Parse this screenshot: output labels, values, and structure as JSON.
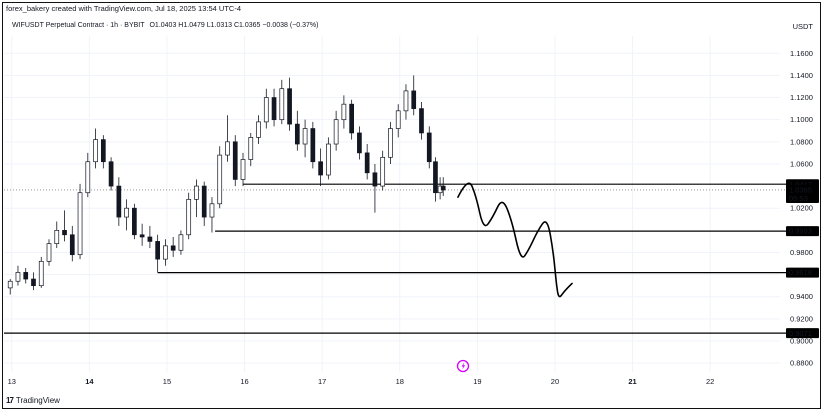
{
  "header": {
    "credit": "forex_bakery created with TradingView.com, Jul 18, 2025 13:54 UTC-4",
    "symbol": "WIFUSDT Perpetual Contract · 1h · BYBIT",
    "open": "O1.0403",
    "high": "H1.0479",
    "low": "L1.0313",
    "close": "C1.0365",
    "change": "−0.0038 (−0.37%)",
    "currency": "USDT"
  },
  "footer": {
    "brand": "TradingView",
    "logo_text": "17"
  },
  "colors": {
    "bull": "#26a69a",
    "bear": "#ef5350",
    "candle": "#131722",
    "line": "#000000",
    "grid": "#f0f3fa",
    "icon_accent": "#d500f9"
  },
  "icons": {
    "watermark": "lightning-icon"
  },
  "chart_data": {
    "type": "candlestick",
    "x_ticks": [
      {
        "label": "13",
        "day": 13,
        "bold": false
      },
      {
        "label": "14",
        "day": 14,
        "bold": true
      },
      {
        "label": "15",
        "day": 15,
        "bold": false
      },
      {
        "label": "16",
        "day": 16,
        "bold": false
      },
      {
        "label": "17",
        "day": 17,
        "bold": false
      },
      {
        "label": "18",
        "day": 18,
        "bold": false
      },
      {
        "label": "19",
        "day": 19,
        "bold": false
      },
      {
        "label": "20",
        "day": 20,
        "bold": false
      },
      {
        "label": "21",
        "day": 21,
        "bold": true
      },
      {
        "label": "22",
        "day": 22,
        "bold": false
      }
    ],
    "y_ticks": [
      "1.1600",
      "1.1400",
      "1.1200",
      "1.1000",
      "1.0800",
      "1.0600",
      "1.0200",
      "0.9800",
      "0.9600",
      "0.9400",
      "0.9200",
      "0.9000",
      "0.8800"
    ],
    "ylim": [
      0.872,
      1.172
    ],
    "xlim": [
      12.9,
      22.9
    ],
    "candles": [
      {
        "t": 12.98,
        "o": 0.948,
        "h": 0.956,
        "l": 0.942,
        "c": 0.954
      },
      {
        "t": 13.08,
        "o": 0.954,
        "h": 0.968,
        "l": 0.95,
        "c": 0.962
      },
      {
        "t": 13.18,
        "o": 0.962,
        "h": 0.966,
        "l": 0.952,
        "c": 0.956
      },
      {
        "t": 13.28,
        "o": 0.956,
        "h": 0.962,
        "l": 0.946,
        "c": 0.95
      },
      {
        "t": 13.38,
        "o": 0.95,
        "h": 0.976,
        "l": 0.948,
        "c": 0.972
      },
      {
        "t": 13.48,
        "o": 0.972,
        "h": 0.992,
        "l": 0.968,
        "c": 0.988
      },
      {
        "t": 13.58,
        "o": 0.988,
        "h": 1.008,
        "l": 0.984,
        "c": 1.0
      },
      {
        "t": 13.68,
        "o": 1.0,
        "h": 1.018,
        "l": 0.99,
        "c": 0.996
      },
      {
        "t": 13.78,
        "o": 0.996,
        "h": 1.004,
        "l": 0.972,
        "c": 0.978
      },
      {
        "t": 13.88,
        "o": 0.978,
        "h": 1.042,
        "l": 0.974,
        "c": 1.034
      },
      {
        "t": 13.98,
        "o": 1.034,
        "h": 1.07,
        "l": 1.03,
        "c": 1.062
      },
      {
        "t": 14.08,
        "o": 1.062,
        "h": 1.092,
        "l": 1.056,
        "c": 1.082
      },
      {
        "t": 14.18,
        "o": 1.082,
        "h": 1.086,
        "l": 1.056,
        "c": 1.062
      },
      {
        "t": 14.28,
        "o": 1.062,
        "h": 1.066,
        "l": 1.036,
        "c": 1.04
      },
      {
        "t": 14.38,
        "o": 1.04,
        "h": 1.048,
        "l": 1.004,
        "c": 1.012
      },
      {
        "t": 14.48,
        "o": 1.012,
        "h": 1.028,
        "l": 1.0,
        "c": 1.02
      },
      {
        "t": 14.58,
        "o": 1.02,
        "h": 1.024,
        "l": 0.992,
        "c": 0.996
      },
      {
        "t": 14.68,
        "o": 0.996,
        "h": 1.006,
        "l": 0.986,
        "c": 0.994
      },
      {
        "t": 14.78,
        "o": 0.994,
        "h": 1.004,
        "l": 0.984,
        "c": 0.99
      },
      {
        "t": 14.88,
        "o": 0.99,
        "h": 0.996,
        "l": 0.962,
        "c": 0.974
      },
      {
        "t": 14.98,
        "o": 0.974,
        "h": 0.992,
        "l": 0.968,
        "c": 0.986
      },
      {
        "t": 15.08,
        "o": 0.986,
        "h": 0.994,
        "l": 0.976,
        "c": 0.982
      },
      {
        "t": 15.18,
        "o": 0.982,
        "h": 1.0,
        "l": 0.978,
        "c": 0.996
      },
      {
        "t": 15.28,
        "o": 0.996,
        "h": 1.034,
        "l": 0.992,
        "c": 1.028
      },
      {
        "t": 15.38,
        "o": 1.028,
        "h": 1.046,
        "l": 1.012,
        "c": 1.04
      },
      {
        "t": 15.48,
        "o": 1.04,
        "h": 1.044,
        "l": 1.004,
        "c": 1.012
      },
      {
        "t": 15.58,
        "o": 1.012,
        "h": 1.03,
        "l": 0.998,
        "c": 1.024
      },
      {
        "t": 15.68,
        "o": 1.024,
        "h": 1.076,
        "l": 1.02,
        "c": 1.068
      },
      {
        "t": 15.78,
        "o": 1.068,
        "h": 1.104,
        "l": 1.062,
        "c": 1.08
      },
      {
        "t": 15.88,
        "o": 1.08,
        "h": 1.086,
        "l": 1.04,
        "c": 1.046
      },
      {
        "t": 15.98,
        "o": 1.046,
        "h": 1.07,
        "l": 1.04,
        "c": 1.064
      },
      {
        "t": 16.08,
        "o": 1.064,
        "h": 1.088,
        "l": 1.058,
        "c": 1.084
      },
      {
        "t": 16.18,
        "o": 1.084,
        "h": 1.104,
        "l": 1.078,
        "c": 1.098
      },
      {
        "t": 16.28,
        "o": 1.098,
        "h": 1.128,
        "l": 1.092,
        "c": 1.12
      },
      {
        "t": 16.38,
        "o": 1.12,
        "h": 1.128,
        "l": 1.094,
        "c": 1.1
      },
      {
        "t": 16.48,
        "o": 1.1,
        "h": 1.136,
        "l": 1.096,
        "c": 1.128
      },
      {
        "t": 16.58,
        "o": 1.128,
        "h": 1.138,
        "l": 1.09,
        "c": 1.096
      },
      {
        "t": 16.68,
        "o": 1.096,
        "h": 1.108,
        "l": 1.072,
        "c": 1.078
      },
      {
        "t": 16.78,
        "o": 1.078,
        "h": 1.1,
        "l": 1.066,
        "c": 1.092
      },
      {
        "t": 16.88,
        "o": 1.092,
        "h": 1.098,
        "l": 1.056,
        "c": 1.062
      },
      {
        "t": 16.98,
        "o": 1.062,
        "h": 1.074,
        "l": 1.04,
        "c": 1.05
      },
      {
        "t": 17.08,
        "o": 1.05,
        "h": 1.084,
        "l": 1.046,
        "c": 1.078
      },
      {
        "t": 17.18,
        "o": 1.078,
        "h": 1.108,
        "l": 1.072,
        "c": 1.1
      },
      {
        "t": 17.28,
        "o": 1.1,
        "h": 1.122,
        "l": 1.092,
        "c": 1.114
      },
      {
        "t": 17.38,
        "o": 1.114,
        "h": 1.118,
        "l": 1.082,
        "c": 1.088
      },
      {
        "t": 17.48,
        "o": 1.088,
        "h": 1.094,
        "l": 1.064,
        "c": 1.07
      },
      {
        "t": 17.58,
        "o": 1.07,
        "h": 1.078,
        "l": 1.046,
        "c": 1.052
      },
      {
        "t": 17.68,
        "o": 1.052,
        "h": 1.06,
        "l": 1.016,
        "c": 1.04
      },
      {
        "t": 17.78,
        "o": 1.04,
        "h": 1.072,
        "l": 1.036,
        "c": 1.066
      },
      {
        "t": 17.88,
        "o": 1.066,
        "h": 1.098,
        "l": 1.06,
        "c": 1.092
      },
      {
        "t": 17.98,
        "o": 1.092,
        "h": 1.114,
        "l": 1.084,
        "c": 1.108
      },
      {
        "t": 18.08,
        "o": 1.108,
        "h": 1.132,
        "l": 1.1,
        "c": 1.126
      },
      {
        "t": 18.18,
        "o": 1.126,
        "h": 1.14,
        "l": 1.104,
        "c": 1.11
      },
      {
        "t": 18.28,
        "o": 1.11,
        "h": 1.116,
        "l": 1.082,
        "c": 1.088
      },
      {
        "t": 18.38,
        "o": 1.088,
        "h": 1.094,
        "l": 1.056,
        "c": 1.062
      },
      {
        "t": 18.46,
        "o": 1.062,
        "h": 1.066,
        "l": 1.026,
        "c": 1.034
      },
      {
        "t": 18.52,
        "o": 1.034,
        "h": 1.048,
        "l": 1.028,
        "c": 1.04
      },
      {
        "t": 18.56,
        "o": 1.04,
        "h": 1.048,
        "l": 1.031,
        "c": 1.0365
      }
    ],
    "levels": [
      {
        "price": 1.0417,
        "from": 15.98,
        "label": "1.0417"
      },
      {
        "price": 0.9993,
        "from": 15.62,
        "label": "0.9993"
      },
      {
        "price": 0.9618,
        "from": 14.88,
        "label": "0.9618"
      },
      {
        "price": 0.9071,
        "from": 12.9,
        "label": "0.9071"
      }
    ],
    "current_price": {
      "value": 1.0365,
      "label": "1.0365",
      "countdown": "05:53"
    },
    "price_label_1020": {
      "value": 1.02,
      "label": "1.0200"
    },
    "projection": [
      [
        18.75,
        1.03
      ],
      [
        18.88,
        1.048
      ],
      [
        18.98,
        1.032
      ],
      [
        19.08,
        1.0
      ],
      [
        19.2,
        1.012
      ],
      [
        19.32,
        1.03
      ],
      [
        19.44,
        1.01
      ],
      [
        19.56,
        0.972
      ],
      [
        19.66,
        0.982
      ],
      [
        19.78,
        1.0
      ],
      [
        19.9,
        1.012
      ],
      [
        19.98,
        0.98
      ],
      [
        20.02,
        0.95
      ],
      [
        20.05,
        0.938
      ],
      [
        20.12,
        0.945
      ],
      [
        20.22,
        0.952
      ]
    ]
  }
}
